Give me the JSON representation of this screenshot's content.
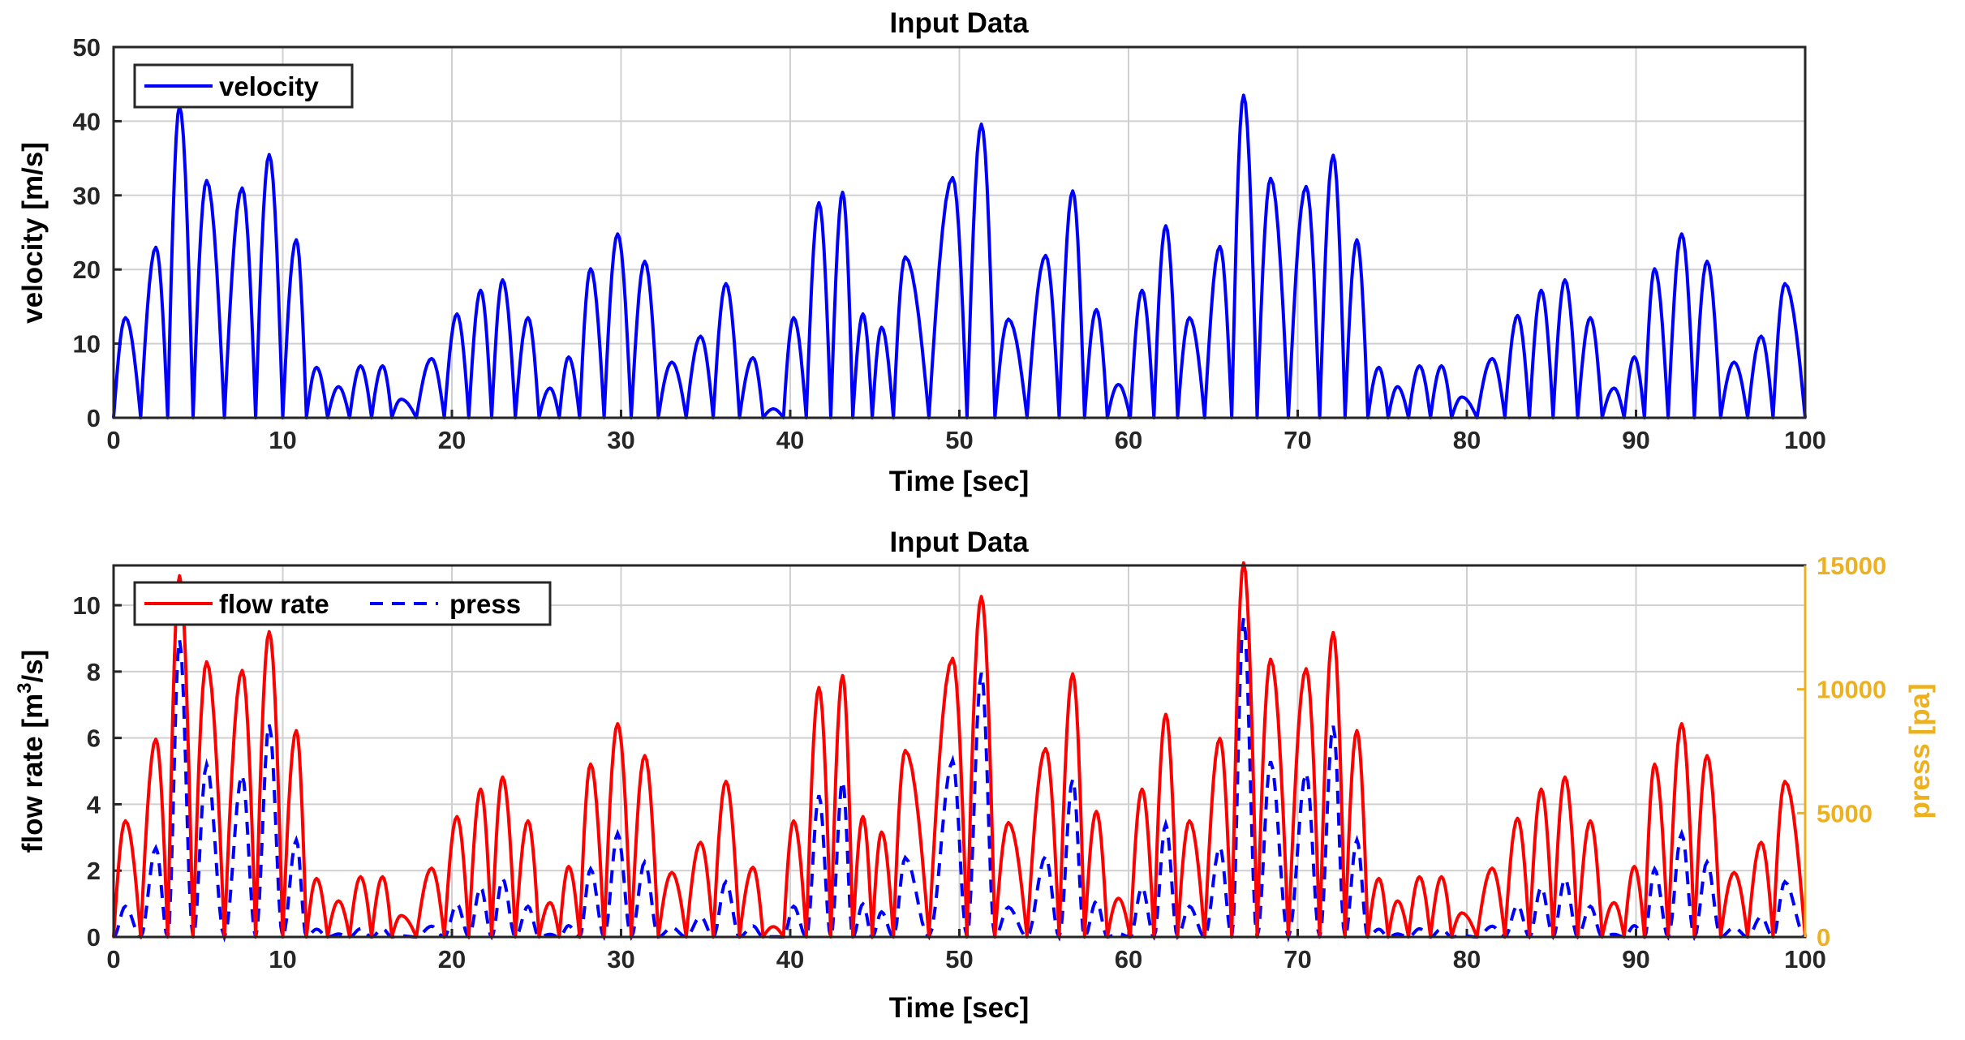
{
  "chart_data": [
    {
      "type": "line",
      "title": "Input Data",
      "xlabel": "Time [sec]",
      "ylabel": "velocity [m/s]",
      "xlim": [
        0,
        100
      ],
      "ylim": [
        0,
        50
      ],
      "xticks": [
        "0",
        "10",
        "20",
        "30",
        "40",
        "50",
        "60",
        "70",
        "80",
        "90",
        "100"
      ],
      "yticks": [
        "0",
        "10",
        "20",
        "30",
        "40",
        "50"
      ],
      "grid": true,
      "legend": "top-left",
      "series": [
        {
          "name": "velocity",
          "color": "#0000ff",
          "style": "solid",
          "peaks": [
            [
              0.7,
              13.5
            ],
            [
              2.5,
              23
            ],
            [
              3.9,
              42
            ],
            [
              5.5,
              32
            ],
            [
              7.6,
              31
            ],
            [
              9.2,
              35.5
            ],
            [
              10.8,
              24
            ],
            [
              12,
              6.8
            ],
            [
              13.3,
              4.2
            ],
            [
              14.6,
              7
            ],
            [
              15.9,
              7
            ],
            [
              17,
              2.5
            ],
            [
              18.8,
              8
            ],
            [
              20.3,
              14
            ],
            [
              21.7,
              17.2
            ],
            [
              23,
              18.6
            ],
            [
              24.5,
              13.5
            ],
            [
              25.8,
              4
            ],
            [
              26.9,
              8.2
            ],
            [
              28.2,
              20.1
            ],
            [
              29.8,
              24.8
            ],
            [
              31.4,
              21.1
            ],
            [
              33,
              7.5
            ],
            [
              34.7,
              11
            ],
            [
              36.2,
              18.1
            ],
            [
              37.8,
              8.1
            ],
            [
              39,
              1.2
            ],
            [
              40.2,
              13.5
            ],
            [
              41.7,
              29
            ],
            [
              43.1,
              30.4
            ],
            [
              44.3,
              14
            ],
            [
              45.4,
              12.2
            ],
            [
              46.8,
              21.7
            ],
            [
              49.6,
              32.4
            ],
            [
              51.3,
              39.6
            ],
            [
              52.9,
              13.3
            ],
            [
              55.1,
              21.9
            ],
            [
              56.7,
              30.6
            ],
            [
              58.1,
              14.6
            ],
            [
              59.4,
              4.5
            ],
            [
              60.8,
              17.2
            ],
            [
              62.2,
              25.9
            ],
            [
              63.6,
              13.5
            ],
            [
              65.4,
              23.1
            ],
            [
              66.8,
              43.5
            ],
            [
              68.4,
              32.3
            ],
            [
              70.5,
              31.2
            ],
            [
              72.1,
              35.4
            ],
            [
              73.5,
              24
            ],
            [
              74.8,
              6.8
            ],
            [
              75.9,
              4.2
            ],
            [
              77.2,
              7
            ],
            [
              78.5,
              7
            ],
            [
              79.7,
              2.8
            ],
            [
              81.5,
              8
            ],
            [
              83,
              13.8
            ],
            [
              84.4,
              17.2
            ],
            [
              85.8,
              18.6
            ],
            [
              87.3,
              13.5
            ],
            [
              88.7,
              4
            ],
            [
              89.9,
              8.2
            ],
            [
              91.1,
              20.1
            ],
            [
              92.7,
              24.8
            ],
            [
              94.2,
              21.1
            ],
            [
              95.8,
              7.5
            ],
            [
              97.4,
              11
            ],
            [
              98.8,
              18.1
            ]
          ]
        }
      ]
    },
    {
      "type": "line",
      "title": "Input Data",
      "xlabel": "Time [sec]",
      "ylabel": "flow rate [m³/s]",
      "ylabel_right": "press [pa]",
      "xlim": [
        0,
        100
      ],
      "ylim": [
        0,
        11.2
      ],
      "ylim_right": [
        0,
        15000
      ],
      "xticks": [
        "0",
        "10",
        "20",
        "30",
        "40",
        "50",
        "60",
        "70",
        "80",
        "90",
        "100"
      ],
      "yticks": [
        "0",
        "2",
        "4",
        "6",
        "8",
        "10"
      ],
      "yticks_right": [
        "0",
        "5000",
        "10000",
        "15000"
      ],
      "grid": true,
      "legend": "top-left",
      "series": [
        {
          "name": "flow rate",
          "color": "#ff0000",
          "style": "solid",
          "axis": "left",
          "derived_from": "velocity",
          "scale": 0.2592,
          "offset": 0
        },
        {
          "name": "press",
          "color": "#0000ff",
          "style": "dashed",
          "axis": "right",
          "derived_from": "velocity",
          "rule": "6.8*v^2"
        }
      ]
    }
  ],
  "labels": {
    "top_title": "Input Data",
    "top_xlabel": "Time [sec]",
    "top_ylabel": "velocity [m/s]",
    "top_legend": "velocity",
    "bot_title": "Input Data",
    "bot_xlabel": "Time [sec]",
    "bot_ylabel_prefix": "flow rate [m",
    "bot_ylabel_sup": "3",
    "bot_ylabel_suffix": "/s]",
    "bot_ylabel_right": "press [pa]",
    "legend_flow": "flow rate",
    "legend_press": "press"
  },
  "colors": {
    "velocity": "#0000ff",
    "flow": "#ff0000",
    "press": "#0000ff",
    "right_axis": "#edb120"
  }
}
